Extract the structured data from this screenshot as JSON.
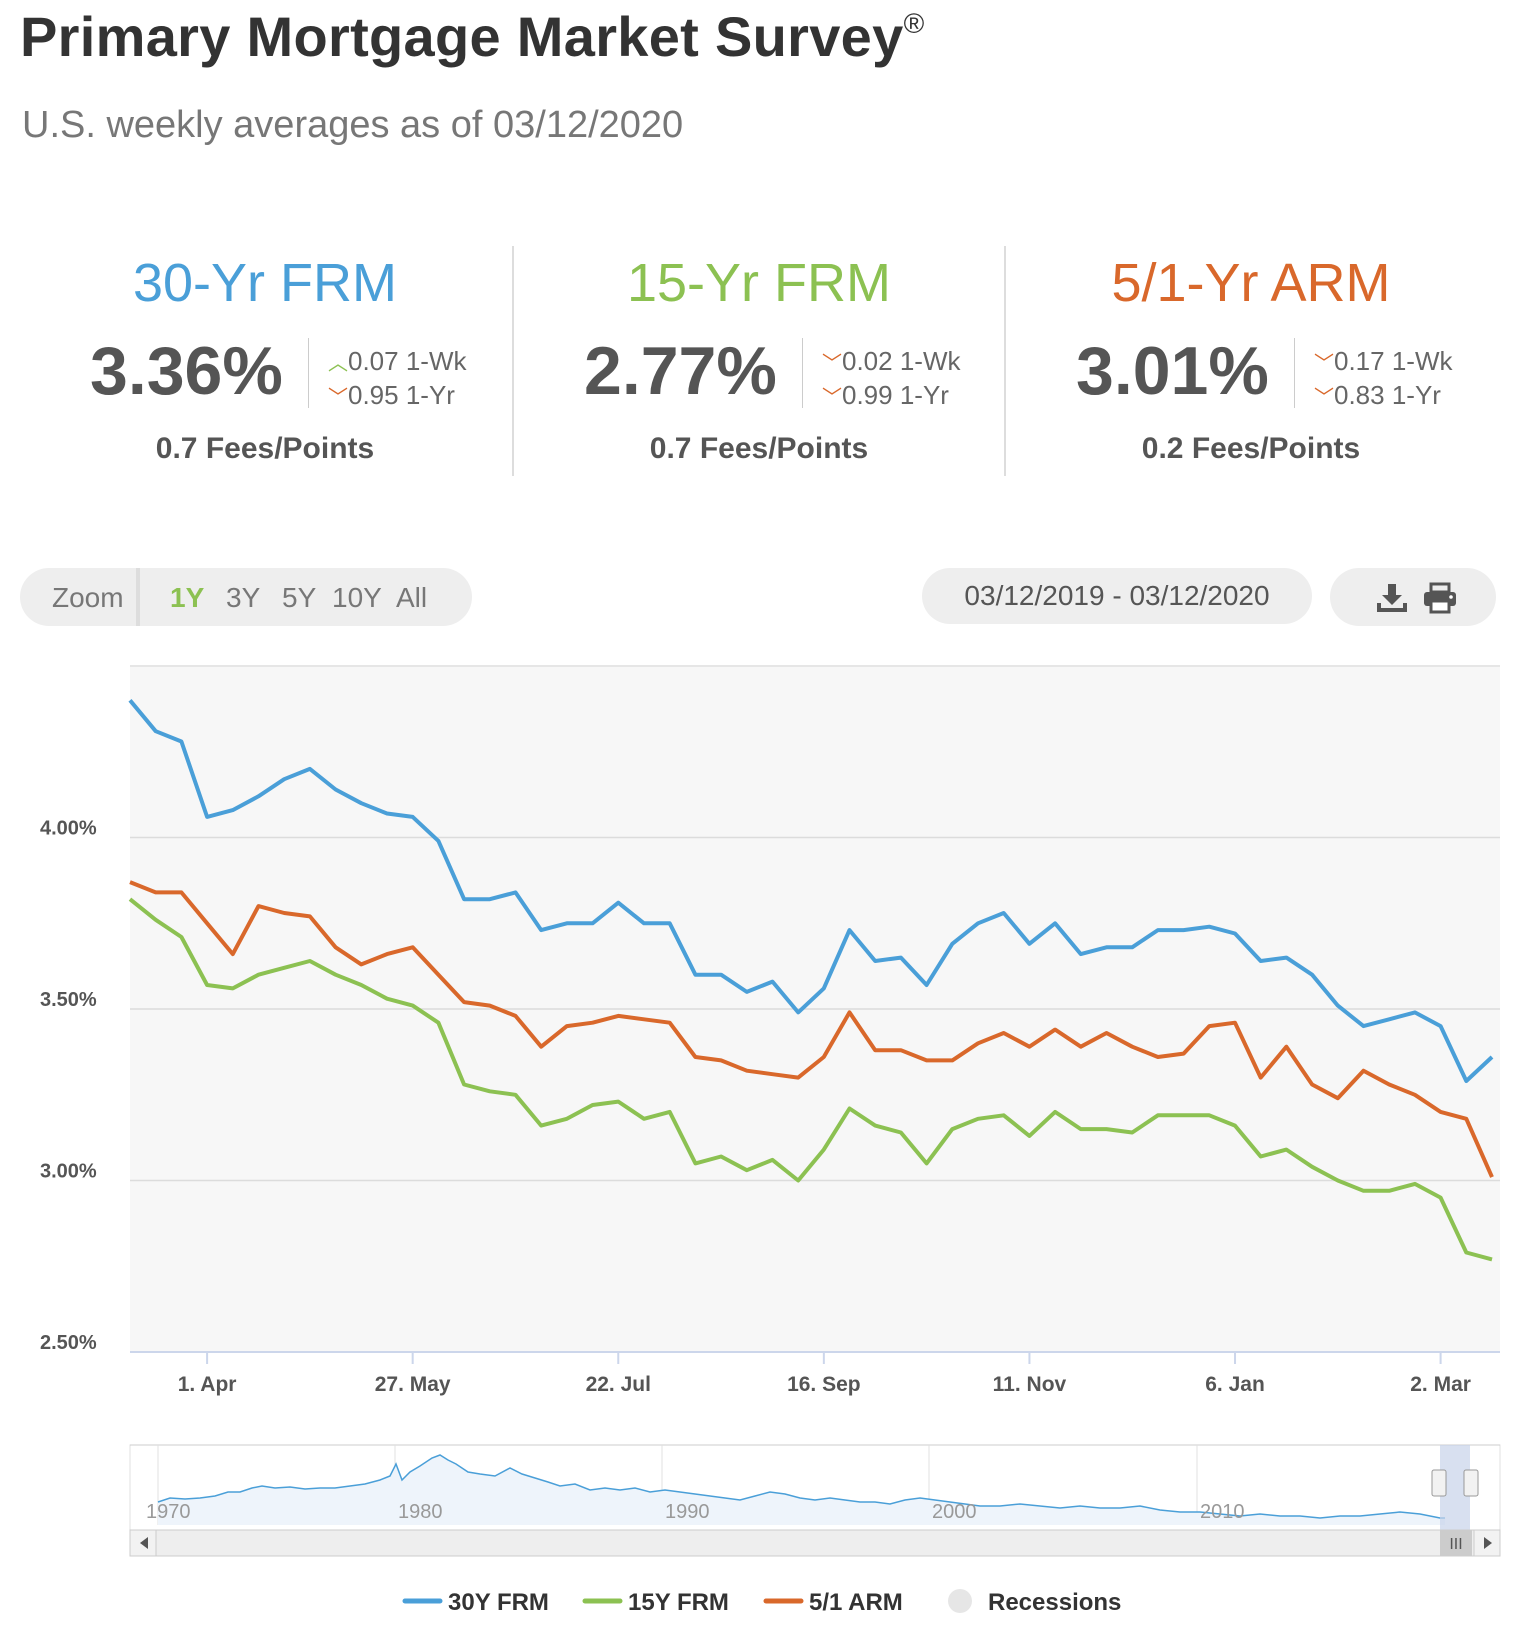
{
  "header": {
    "title": "Primary Mortgage Market Survey",
    "title_mark": "®",
    "subtitle": "U.S. weekly averages as of 03/12/2020"
  },
  "rates": [
    {
      "name": "30-Yr FRM",
      "color": "#4a9fd8",
      "value": "3.36%",
      "week_dir": "up",
      "week_change": "0.07 1-Wk",
      "year_dir": "down",
      "year_change": "0.95 1-Yr",
      "fees": "0.7 Fees/Points"
    },
    {
      "name": "15-Yr FRM",
      "color": "#8cc152",
      "value": "2.77%",
      "week_dir": "down",
      "week_change": "0.02 1-Wk",
      "year_dir": "down",
      "year_change": "0.99 1-Yr",
      "fees": "0.7 Fees/Points"
    },
    {
      "name": "5/1-Yr ARM",
      "color": "#d9682b",
      "value": "3.01%",
      "week_dir": "down",
      "week_change": "0.17 1-Wk",
      "year_dir": "down",
      "year_change": "0.83 1-Yr",
      "fees": "0.2 Fees/Points"
    }
  ],
  "controls": {
    "zoom_label": "Zoom",
    "zoom_options": [
      "1Y",
      "3Y",
      "5Y",
      "10Y",
      "All"
    ],
    "zoom_active": "1Y",
    "date_range": "03/12/2019 - 03/12/2020",
    "download_icon": "download-icon",
    "print_icon": "print-icon"
  },
  "chart_data": {
    "type": "line",
    "x_tick_labels": [
      "1. Apr",
      "27. May",
      "22. Jul",
      "16. Sep",
      "11. Nov",
      "6. Jan",
      "2. Mar"
    ],
    "y_tick_labels": [
      "2.50%",
      "3.00%",
      "3.50%",
      "4.00%"
    ],
    "y_ticks": [
      2.5,
      3.0,
      3.5,
      4.0
    ],
    "ylim": [
      2.5,
      4.5
    ],
    "grid": true,
    "legend_position": "bottom-center",
    "series": [
      {
        "name": "30Y FRM",
        "color": "#4a9fd8",
        "values": [
          4.4,
          4.31,
          4.28,
          4.06,
          4.08,
          4.12,
          4.17,
          4.2,
          4.14,
          4.1,
          4.07,
          4.06,
          3.99,
          3.82,
          3.82,
          3.84,
          3.73,
          3.75,
          3.75,
          3.81,
          3.75,
          3.75,
          3.6,
          3.6,
          3.55,
          3.58,
          3.49,
          3.56,
          3.73,
          3.64,
          3.65,
          3.57,
          3.69,
          3.75,
          3.78,
          3.69,
          3.75,
          3.66,
          3.68,
          3.68,
          3.73,
          3.73,
          3.74,
          3.72,
          3.64,
          3.65,
          3.6,
          3.51,
          3.45,
          3.47,
          3.49,
          3.45,
          3.29,
          3.36
        ]
      },
      {
        "name": "15Y FRM",
        "color": "#8cc152",
        "values": [
          3.82,
          3.76,
          3.71,
          3.57,
          3.56,
          3.6,
          3.62,
          3.64,
          3.6,
          3.57,
          3.53,
          3.51,
          3.46,
          3.28,
          3.26,
          3.25,
          3.16,
          3.18,
          3.22,
          3.23,
          3.18,
          3.2,
          3.05,
          3.07,
          3.03,
          3.06,
          3.0,
          3.09,
          3.21,
          3.16,
          3.14,
          3.05,
          3.15,
          3.18,
          3.19,
          3.13,
          3.2,
          3.15,
          3.15,
          3.14,
          3.19,
          3.19,
          3.19,
          3.16,
          3.07,
          3.09,
          3.04,
          3.0,
          2.97,
          2.97,
          2.99,
          2.95,
          2.79,
          2.77
        ]
      },
      {
        "name": "5/1 ARM",
        "color": "#d9682b",
        "values": [
          3.87,
          3.84,
          3.84,
          3.75,
          3.66,
          3.8,
          3.78,
          3.77,
          3.68,
          3.63,
          3.66,
          3.68,
          3.6,
          3.52,
          3.51,
          3.48,
          3.39,
          3.45,
          3.46,
          3.48,
          3.47,
          3.46,
          3.36,
          3.35,
          3.32,
          3.31,
          3.3,
          3.36,
          3.49,
          3.38,
          3.38,
          3.35,
          3.35,
          3.4,
          3.43,
          3.39,
          3.44,
          3.39,
          3.43,
          3.39,
          3.36,
          3.37,
          3.45,
          3.46,
          3.3,
          3.39,
          3.28,
          3.24,
          3.32,
          3.28,
          3.25,
          3.2,
          3.18,
          3.01
        ]
      }
    ],
    "legend": [
      {
        "label": "30Y FRM",
        "color": "#4a9fd8"
      },
      {
        "label": "15Y FRM",
        "color": "#8cc152"
      },
      {
        "label": "5/1 ARM",
        "color": "#d9682b"
      },
      {
        "label": "Recessions",
        "color": "#e6e6e6"
      }
    ],
    "navigator": {
      "x_tick_labels": [
        "1970",
        "1980",
        "1990",
        "2000",
        "2010"
      ]
    }
  }
}
